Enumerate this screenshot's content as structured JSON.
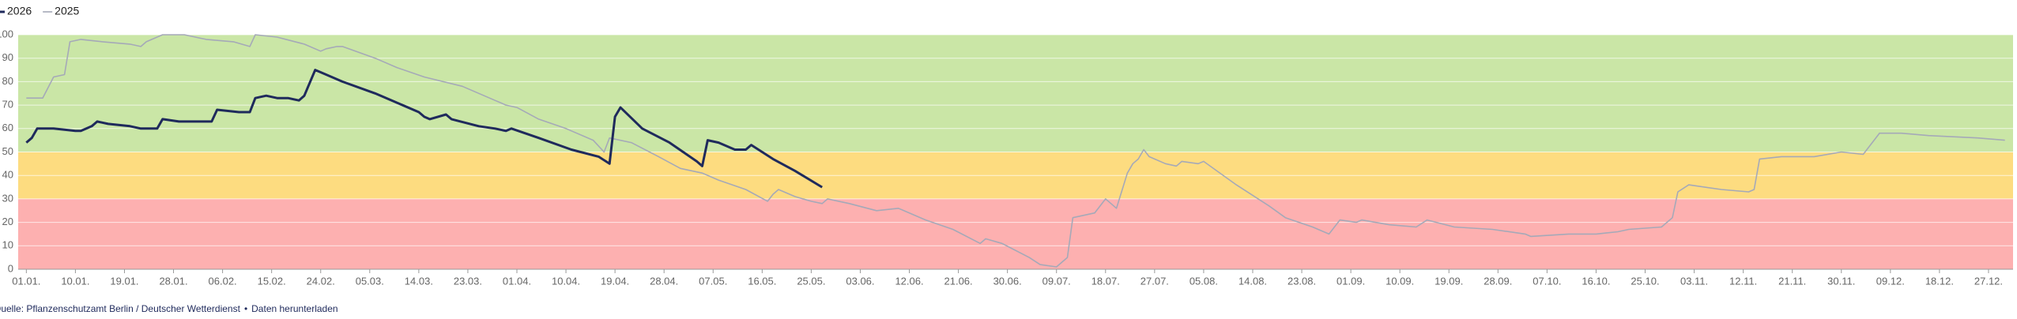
{
  "chart_data": {
    "type": "line",
    "xlim": [
      -1.5,
      364.5
    ],
    "ylim": [
      0,
      100
    ],
    "yticks": [
      0,
      10,
      20,
      30,
      40,
      50,
      60,
      70,
      80,
      90,
      100
    ],
    "xticks": [
      {
        "value": 0,
        "label": "01.01."
      },
      {
        "value": 9,
        "label": "10.01."
      },
      {
        "value": 18,
        "label": "19.01."
      },
      {
        "value": 27,
        "label": "28.01."
      },
      {
        "value": 36,
        "label": "06.02."
      },
      {
        "value": 45,
        "label": "15.02."
      },
      {
        "value": 54,
        "label": "24.02."
      },
      {
        "value": 63,
        "label": "05.03."
      },
      {
        "value": 72,
        "label": "14.03."
      },
      {
        "value": 81,
        "label": "23.03."
      },
      {
        "value": 90,
        "label": "01.04."
      },
      {
        "value": 99,
        "label": "10.04."
      },
      {
        "value": 108,
        "label": "19.04."
      },
      {
        "value": 117,
        "label": "28.04."
      },
      {
        "value": 126,
        "label": "07.05."
      },
      {
        "value": 135,
        "label": "16.05."
      },
      {
        "value": 144,
        "label": "25.05."
      },
      {
        "value": 153,
        "label": "03.06."
      },
      {
        "value": 162,
        "label": "12.06."
      },
      {
        "value": 171,
        "label": "21.06."
      },
      {
        "value": 180,
        "label": "30.06."
      },
      {
        "value": 189,
        "label": "09.07."
      },
      {
        "value": 198,
        "label": "18.07."
      },
      {
        "value": 207,
        "label": "27.07."
      },
      {
        "value": 216,
        "label": "05.08."
      },
      {
        "value": 225,
        "label": "14.08."
      },
      {
        "value": 234,
        "label": "23.08."
      },
      {
        "value": 243,
        "label": "01.09."
      },
      {
        "value": 252,
        "label": "10.09."
      },
      {
        "value": 261,
        "label": "19.09."
      },
      {
        "value": 270,
        "label": "28.09."
      },
      {
        "value": 279,
        "label": "07.10."
      },
      {
        "value": 288,
        "label": "16.10."
      },
      {
        "value": 297,
        "label": "25.10."
      },
      {
        "value": 306,
        "label": "03.11."
      },
      {
        "value": 315,
        "label": "12.11."
      },
      {
        "value": 324,
        "label": "21.11."
      },
      {
        "value": 333,
        "label": "30.11."
      },
      {
        "value": 342,
        "label": "09.12."
      },
      {
        "value": 351,
        "label": "18.12."
      },
      {
        "value": 360,
        "label": "27.12."
      }
    ],
    "grid": true,
    "bands": [
      {
        "from": 50,
        "to": 100,
        "color": "#cae6a6"
      },
      {
        "from": 30,
        "to": 50,
        "color": "#fddc80"
      },
      {
        "from": 0,
        "to": 30,
        "color": "#fdb0b0"
      }
    ],
    "series": [
      {
        "name": "2026",
        "color": "#1f2a5c",
        "x": [
          0,
          1,
          2,
          5,
          9,
          10,
          12,
          13,
          15,
          19,
          21,
          24,
          25,
          28,
          31,
          34,
          35,
          39,
          41,
          42,
          44,
          46,
          48,
          50,
          51,
          53,
          54,
          58,
          64,
          68,
          72,
          73,
          74,
          77,
          78,
          83,
          86,
          88,
          89,
          94,
          100,
          105,
          107,
          108,
          109,
          113,
          118,
          123,
          124,
          125,
          127,
          130,
          132,
          133,
          137,
          141,
          146
        ],
        "values": [
          54,
          56,
          60,
          60,
          59,
          59,
          61,
          63,
          62,
          61,
          60,
          60,
          64,
          63,
          63,
          63,
          68,
          67,
          67,
          73,
          74,
          73,
          73,
          72,
          74,
          85,
          84,
          80,
          75,
          71,
          67,
          65,
          64,
          66,
          64,
          61,
          60,
          59,
          60,
          56,
          51,
          48,
          45,
          65,
          69,
          60,
          54,
          46,
          44,
          55,
          54,
          51,
          51,
          53,
          47,
          42,
          35
        ]
      },
      {
        "name": "2025",
        "color": "#a5a9b8",
        "x": [
          0,
          3,
          5,
          7,
          8,
          10,
          14,
          19,
          21,
          22,
          25,
          29,
          33,
          38,
          41,
          42,
          46,
          51,
          54,
          55,
          57,
          58,
          64,
          68,
          73,
          80,
          86,
          88,
          90,
          94,
          99,
          104,
          106,
          107,
          111,
          116,
          120,
          124,
          127,
          132,
          136,
          137,
          138,
          141,
          144,
          146,
          147,
          151,
          156,
          160,
          165,
          170,
          175,
          176,
          179,
          184,
          186,
          189,
          191,
          192,
          196,
          198,
          199,
          200,
          202,
          203,
          204,
          205,
          206,
          209,
          211,
          212,
          215,
          216,
          222,
          228,
          231,
          236,
          239,
          241,
          244,
          245,
          250,
          255,
          257,
          262,
          269,
          275,
          276,
          283,
          288,
          292,
          294,
          300,
          302,
          303,
          305,
          311,
          316,
          317,
          318,
          322,
          328,
          333,
          337,
          340,
          344,
          349,
          358,
          363
        ],
        "values": [
          73,
          73,
          82,
          83,
          97,
          98,
          97,
          96,
          95,
          97,
          100,
          100,
          98,
          97,
          95,
          100,
          99,
          96,
          93,
          94,
          95,
          95,
          90,
          86,
          82,
          78,
          72,
          70,
          69,
          64,
          60,
          55,
          50,
          56,
          54,
          48,
          43,
          41,
          38,
          34,
          29,
          32,
          34,
          31,
          29,
          28,
          30,
          28,
          25,
          26,
          21,
          17,
          11,
          13,
          11,
          5,
          2,
          1,
          5,
          22,
          24,
          30,
          28,
          26,
          41,
          45,
          47,
          51,
          48,
          45,
          44,
          46,
          45,
          46,
          36,
          27,
          22,
          18,
          15,
          21,
          20,
          21,
          19,
          18,
          21,
          18,
          17,
          15,
          14,
          15,
          15,
          16,
          17,
          18,
          22,
          33,
          36,
          34,
          33,
          34,
          47,
          48,
          48,
          50,
          49,
          58,
          58,
          57,
          56,
          55
        ]
      }
    ],
    "source": "Quelle: Pflanzenschutzamt Berlin / Deutscher Wetterdienst",
    "separator": "•",
    "link": "Daten herunterladen"
  }
}
